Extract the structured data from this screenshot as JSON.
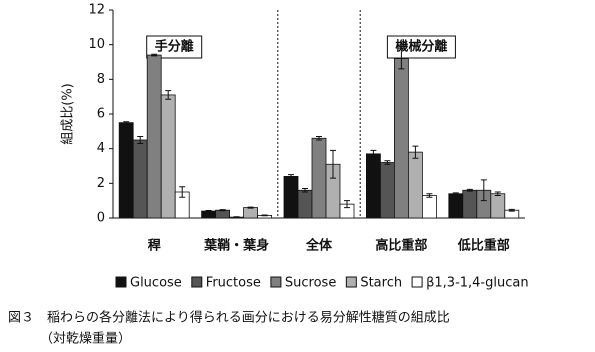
{
  "chart_data": {
    "type": "bar",
    "title": "図３　稲わらの各分離法により得られる画分における易分解性糖質の組成比",
    "subtitle": "（対乾燥重量）",
    "ylabel": "組成比(%)",
    "annotations": [
      "手分離",
      "機械分離"
    ],
    "categories": [
      "稈",
      "葉鞘・葉身",
      "全体",
      "高比重部",
      "低比重部"
    ],
    "series": [
      {
        "name": "Glucose",
        "color": "#111111",
        "values": [
          5.5,
          0.4,
          2.4,
          3.7,
          1.4
        ],
        "errors": [
          0.05,
          0.03,
          0.1,
          0.2,
          0.05
        ]
      },
      {
        "name": "Fructose",
        "color": "#555555",
        "values": [
          4.5,
          0.45,
          1.6,
          3.2,
          1.6
        ],
        "errors": [
          0.2,
          0.03,
          0.1,
          0.1,
          0.05
        ]
      },
      {
        "name": "Sucrose",
        "color": "#808080",
        "values": [
          9.4,
          0.05,
          4.6,
          9.2,
          1.6
        ],
        "errors": [
          0.05,
          0.02,
          0.1,
          0.6,
          0.6
        ]
      },
      {
        "name": "Starch",
        "color": "#b0b0b0",
        "values": [
          7.1,
          0.6,
          3.1,
          3.8,
          1.4
        ],
        "errors": [
          0.25,
          0.03,
          0.8,
          0.35,
          0.1
        ]
      },
      {
        "name": "β1,3-1,4-glucan",
        "color": "#ffffff",
        "values": [
          1.5,
          0.15,
          0.8,
          1.3,
          0.45
        ],
        "errors": [
          0.3,
          0.02,
          0.2,
          0.1,
          0.05
        ]
      }
    ],
    "ylim": [
      0,
      12
    ],
    "yticks": [
      0,
      2,
      4,
      6,
      8,
      10,
      12
    ],
    "grid": false
  }
}
